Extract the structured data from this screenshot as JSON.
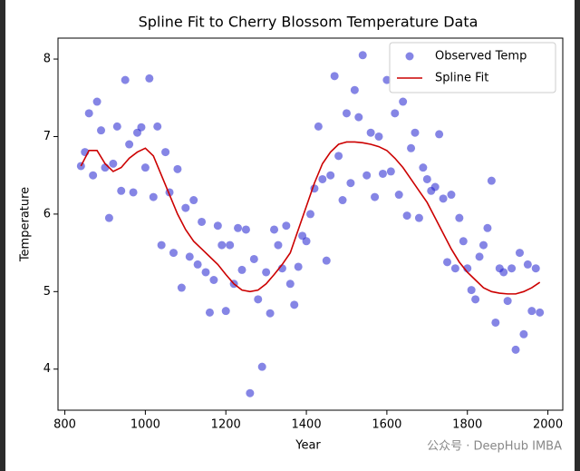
{
  "chart_data": {
    "type": "scatter",
    "title": "Spline Fit to Cherry Blossom Temperature Data",
    "x_label": "Year",
    "y_label": "Temperature",
    "xlim": [
      783,
      2037
    ],
    "ylim": [
      3.47,
      8.27
    ],
    "xticks": [
      800,
      1000,
      1200,
      1400,
      1600,
      1800,
      2000
    ],
    "yticks": [
      4,
      5,
      6,
      7,
      8
    ],
    "legend": "upper right",
    "series": [
      {
        "name": "Observed Temp",
        "type": "scatter",
        "color": "#2020d0",
        "x": [
          840,
          850,
          860,
          870,
          880,
          890,
          900,
          910,
          920,
          930,
          940,
          950,
          960,
          970,
          980,
          990,
          1000,
          1010,
          1020,
          1030,
          1040,
          1050,
          1060,
          1070,
          1080,
          1090,
          1100,
          1110,
          1120,
          1130,
          1140,
          1150,
          1160,
          1170,
          1180,
          1190,
          1200,
          1210,
          1220,
          1230,
          1240,
          1250,
          1260,
          1270,
          1280,
          1290,
          1300,
          1310,
          1320,
          1330,
          1340,
          1350,
          1360,
          1370,
          1380,
          1390,
          1400,
          1410,
          1420,
          1430,
          1440,
          1450,
          1460,
          1470,
          1480,
          1490,
          1500,
          1510,
          1520,
          1530,
          1540,
          1550,
          1560,
          1570,
          1580,
          1590,
          1600,
          1610,
          1620,
          1630,
          1640,
          1650,
          1660,
          1670,
          1680,
          1690,
          1700,
          1710,
          1720,
          1730,
          1740,
          1750,
          1760,
          1770,
          1780,
          1790,
          1800,
          1810,
          1820,
          1830,
          1840,
          1850,
          1860,
          1870,
          1880,
          1890,
          1900,
          1910,
          1920,
          1930,
          1940,
          1950,
          1960,
          1970,
          1980
        ],
        "values": [
          6.62,
          6.8,
          7.3,
          6.5,
          7.45,
          7.08,
          6.6,
          5.95,
          6.65,
          7.13,
          6.3,
          7.73,
          6.9,
          6.28,
          7.05,
          7.12,
          6.6,
          7.75,
          6.22,
          7.13,
          5.6,
          6.8,
          6.28,
          5.5,
          6.58,
          5.05,
          6.08,
          5.45,
          6.18,
          5.35,
          5.9,
          5.25,
          4.73,
          5.15,
          5.85,
          5.6,
          4.75,
          5.6,
          5.1,
          5.82,
          5.28,
          5.8,
          3.69,
          5.42,
          4.9,
          4.03,
          5.25,
          4.72,
          5.8,
          5.6,
          5.3,
          5.85,
          5.1,
          4.83,
          5.32,
          5.72,
          5.65,
          6.0,
          6.33,
          7.13,
          6.45,
          5.4,
          6.5,
          7.78,
          6.75,
          6.18,
          7.3,
          6.4,
          7.6,
          7.25,
          8.05,
          6.5,
          7.05,
          6.22,
          7.0,
          6.52,
          7.73,
          6.55,
          7.3,
          6.25,
          7.45,
          5.98,
          6.85,
          7.05,
          5.95,
          6.6,
          6.45,
          6.3,
          6.35,
          7.03,
          6.2,
          5.38,
          6.25,
          5.3,
          5.95,
          5.65,
          5.3,
          5.02,
          4.9,
          5.45,
          5.6,
          5.82,
          6.43,
          4.6,
          5.3,
          5.25,
          4.88,
          5.3,
          4.25,
          5.5,
          4.45,
          5.35,
          4.75,
          5.3,
          4.73
        ]
      },
      {
        "name": "Spline Fit",
        "type": "line",
        "color": "#cc0000",
        "x": [
          840,
          860,
          880,
          900,
          920,
          940,
          960,
          980,
          1000,
          1020,
          1040,
          1060,
          1080,
          1100,
          1120,
          1140,
          1160,
          1180,
          1200,
          1220,
          1240,
          1260,
          1280,
          1300,
          1320,
          1340,
          1360,
          1380,
          1400,
          1420,
          1440,
          1460,
          1480,
          1500,
          1520,
          1540,
          1560,
          1580,
          1600,
          1620,
          1640,
          1660,
          1680,
          1700,
          1720,
          1740,
          1760,
          1780,
          1800,
          1820,
          1840,
          1860,
          1880,
          1900,
          1920,
          1940,
          1960,
          1980
        ],
        "values": [
          6.62,
          6.82,
          6.82,
          6.65,
          6.55,
          6.6,
          6.72,
          6.8,
          6.85,
          6.75,
          6.5,
          6.25,
          6.0,
          5.8,
          5.65,
          5.55,
          5.45,
          5.35,
          5.22,
          5.1,
          5.02,
          5.0,
          5.02,
          5.1,
          5.22,
          5.35,
          5.5,
          5.8,
          6.1,
          6.4,
          6.65,
          6.8,
          6.9,
          6.93,
          6.93,
          6.92,
          6.9,
          6.87,
          6.82,
          6.72,
          6.6,
          6.45,
          6.3,
          6.15,
          5.95,
          5.75,
          5.55,
          5.38,
          5.25,
          5.15,
          5.05,
          5.0,
          4.98,
          4.97,
          4.97,
          5.0,
          5.05,
          5.12
        ]
      }
    ]
  },
  "watermark": "公众号 · DeepHub IMBA"
}
